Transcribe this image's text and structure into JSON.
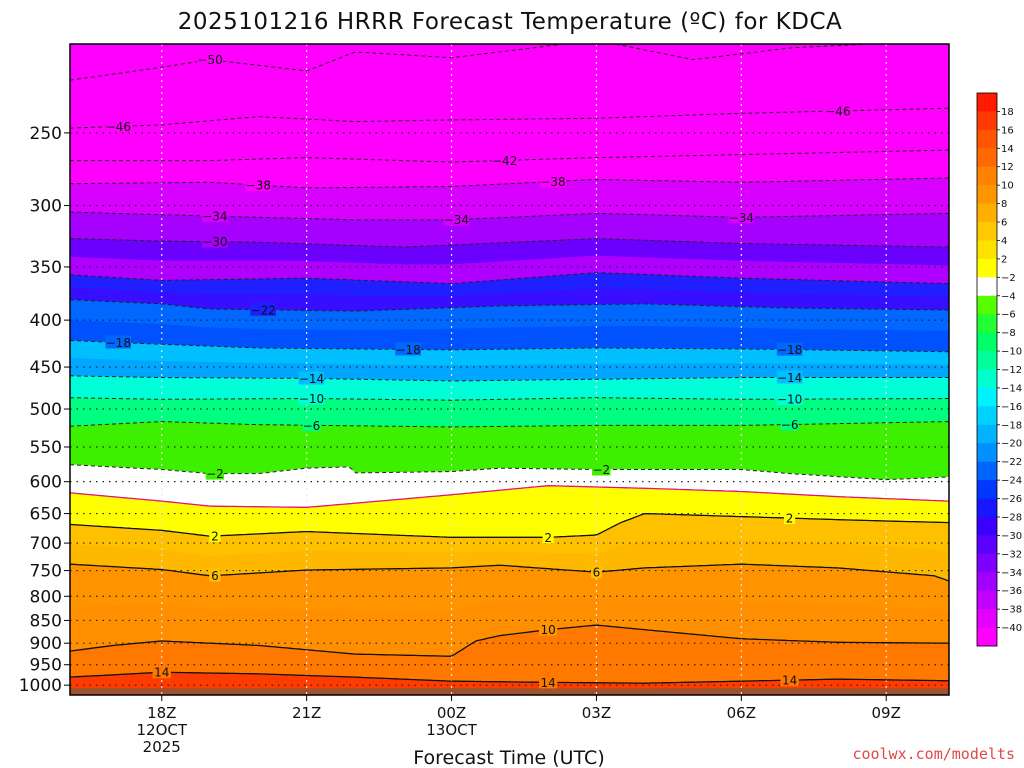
{
  "chart_data": {
    "type": "heatmap",
    "title": "2025101216 HRRR Forecast Temperature (ºC) for KDCA",
    "xlabel": "Forecast Time (UTC)",
    "ylabel": "",
    "credit": "coolwx.com/modelts",
    "x_range_hours": [
      16.1,
      34.3
    ],
    "y_range_hPa": [
      200,
      1025
    ],
    "x_ticks": [
      {
        "hour": 18,
        "lines": [
          "18Z",
          "12OCT",
          "2025"
        ]
      },
      {
        "hour": 21,
        "lines": [
          "21Z"
        ]
      },
      {
        "hour": 24,
        "lines": [
          "00Z",
          "13OCT"
        ]
      },
      {
        "hour": 27,
        "lines": [
          "03Z"
        ]
      },
      {
        "hour": 30,
        "lines": [
          "06Z"
        ]
      },
      {
        "hour": 33,
        "lines": [
          "09Z"
        ]
      }
    ],
    "y_ticks": [
      250,
      300,
      350,
      400,
      450,
      500,
      550,
      600,
      650,
      700,
      750,
      800,
      850,
      900,
      950,
      1000
    ],
    "colorbar_labels": [
      "18",
      "16",
      "14",
      "12",
      "10",
      "8",
      "6",
      "4",
      "2",
      "-2",
      "-4",
      "-6",
      "-8",
      "-10",
      "-12",
      "-14",
      "-16",
      "-18",
      "-20",
      "-22",
      "-24",
      "-26",
      "-28",
      "-30",
      "-32",
      "-34",
      "-36",
      "-38",
      "-40"
    ],
    "colorbar_colors": [
      "#ff1a00",
      "#ff3a00",
      "#ff5500",
      "#ff6a00",
      "#ff8200",
      "#ff9600",
      "#ffaf00",
      "#ffc800",
      "#ffe100",
      "#ffff00",
      "#ffffff",
      "#55ff00",
      "#22ff33",
      "#00ff66",
      "#00ff99",
      "#00ffcc",
      "#00f2ff",
      "#00d2ff",
      "#00b2ff",
      "#0090ff",
      "#0064ff",
      "#0038ff",
      "#1818ff",
      "#3a00ff",
      "#5c00ff",
      "#7e00ff",
      "#a000ff",
      "#c200ff",
      "#e400ff",
      "#ff00ff"
    ],
    "contours": [
      {
        "value": -50,
        "label": "−50",
        "style": "dashed",
        "hours": [
          16.1,
          18,
          19,
          21,
          22,
          24,
          27,
          29,
          31,
          34.3
        ],
        "pressures": [
          219,
          212,
          208,
          214,
          204,
          207,
          198,
          208,
          202,
          198
        ],
        "labels_at": [
          19.0
        ]
      },
      {
        "value": -46,
        "label": "−46",
        "style": "dashed",
        "hours": [
          16.1,
          18,
          20,
          22,
          24,
          27,
          30,
          34.3
        ],
        "pressures": [
          247,
          245,
          240,
          243,
          242,
          241,
          238,
          235
        ],
        "labels_at": [
          17.1,
          32.0
        ]
      },
      {
        "value": -42,
        "label": "−42",
        "style": "dashed",
        "hours": [
          16.1,
          19,
          21,
          24,
          27,
          30,
          34.3
        ],
        "pressures": [
          268,
          268,
          266,
          269,
          266,
          264,
          261
        ],
        "labels_at": [
          25.1
        ]
      },
      {
        "value": -38,
        "label": "−38",
        "style": "dashed",
        "hours": [
          16.1,
          19,
          21,
          24,
          27,
          30,
          34.3
        ],
        "pressures": [
          284,
          283,
          287,
          286,
          281,
          283,
          280
        ],
        "labels_at": [
          20.0,
          26.1
        ]
      },
      {
        "value": -34,
        "label": "−34",
        "style": "dashed",
        "hours": [
          16.1,
          18,
          20,
          22,
          24,
          27,
          30,
          34.3
        ],
        "pressures": [
          305,
          307,
          309,
          311,
          311,
          306,
          309,
          306
        ],
        "labels_at": [
          19.1,
          24.1,
          30.0
        ]
      },
      {
        "value": -30,
        "label": "−30",
        "style": "dashed",
        "hours": [
          16.1,
          18,
          20,
          23,
          27,
          30,
          34.3
        ],
        "pressures": [
          326,
          328,
          329,
          333,
          326,
          330,
          333
        ],
        "labels_at": [
          19.1
        ]
      },
      {
        "value": -26,
        "label": "",
        "style": "dashed",
        "hours": [
          16.1,
          18,
          21,
          24,
          27,
          30,
          34.3
        ],
        "pressures": [
          357,
          362,
          360,
          365,
          355,
          360,
          365
        ],
        "labels_at": []
      },
      {
        "value": -22,
        "label": "−22",
        "style": "dashed",
        "hours": [
          16.1,
          18,
          19,
          22,
          25,
          28,
          31,
          34.3
        ],
        "pressures": [
          380,
          384,
          389,
          391,
          386,
          384,
          388,
          390
        ],
        "labels_at": [
          20.1
        ]
      },
      {
        "value": -18,
        "label": "−18",
        "style": "dashed",
        "hours": [
          16.1,
          18,
          20,
          24,
          27,
          30,
          34.3
        ],
        "pressures": [
          421,
          425,
          429,
          431,
          429,
          430,
          433
        ],
        "labels_at": [
          17.1,
          23.1,
          31.0
        ]
      },
      {
        "value": -14,
        "label": "−14",
        "style": "dashed",
        "hours": [
          16.1,
          18,
          21,
          24,
          27,
          30,
          34.3
        ],
        "pressures": [
          460,
          462,
          463,
          466,
          464,
          462,
          462
        ],
        "labels_at": [
          21.1,
          31.0
        ]
      },
      {
        "value": -10,
        "label": "−10",
        "style": "dashed",
        "hours": [
          16.1,
          18,
          21,
          24,
          27,
          30,
          34.3
        ],
        "pressures": [
          486,
          488,
          487,
          489,
          486,
          488,
          487
        ],
        "labels_at": [
          21.1,
          31.0
        ]
      },
      {
        "value": -6,
        "label": "−6",
        "style": "dashed",
        "hours": [
          16.1,
          18,
          20,
          24,
          27,
          30,
          34.3
        ],
        "pressures": [
          522,
          516,
          520,
          523,
          521,
          521,
          516
        ],
        "labels_at": [
          21.1,
          31.0
        ]
      },
      {
        "value": -2,
        "label": "−2",
        "style": "dashed",
        "hours": [
          16.1,
          18,
          19,
          20,
          21,
          21.9,
          22,
          24,
          25,
          27,
          30,
          31,
          33,
          34.3
        ],
        "pressures": [
          575,
          582,
          588,
          588,
          580,
          578,
          587,
          585,
          580,
          582,
          582,
          588,
          597,
          593
        ],
        "labels_at": [
          19.1,
          27.1
        ]
      },
      {
        "value": 0,
        "label": "",
        "style": "freezing",
        "hours": [
          16.1,
          18,
          19,
          21,
          24,
          26,
          28,
          30,
          32,
          34.3
        ],
        "pressures": [
          617,
          630,
          638,
          640,
          620,
          606,
          610,
          615,
          623,
          630
        ],
        "labels_at": []
      },
      {
        "value": 2,
        "label": "2",
        "style": "solid",
        "hours": [
          16.1,
          18,
          19,
          21,
          24,
          26,
          27,
          27.5,
          28,
          30,
          32,
          34.3
        ],
        "pressures": [
          668,
          678,
          688,
          680,
          690,
          690,
          686,
          665,
          650,
          655,
          660,
          665
        ],
        "labels_at": [
          19.1,
          26.0,
          31.0
        ]
      },
      {
        "value": 6,
        "label": "6",
        "style": "solid",
        "hours": [
          16.1,
          18,
          19,
          21,
          24,
          25,
          27,
          28,
          30,
          32,
          34,
          34.3
        ],
        "pressures": [
          738,
          748,
          760,
          749,
          745,
          740,
          753,
          745,
          738,
          745,
          760,
          770
        ],
        "labels_at": [
          19.1,
          27.0
        ]
      },
      {
        "value": 10,
        "label": "10",
        "style": "solid",
        "hours": [
          16.1,
          17,
          18,
          20,
          22,
          24,
          24.5,
          25,
          26,
          27,
          28,
          30,
          32,
          34.3
        ],
        "pressures": [
          918,
          905,
          895,
          905,
          925,
          930,
          895,
          883,
          870,
          860,
          870,
          890,
          898,
          900
        ],
        "labels_at": [
          26.0
        ]
      },
      {
        "value": 14,
        "label": "14",
        "style": "solid",
        "hours": [
          16.1,
          18,
          20,
          22,
          24,
          26,
          28,
          30,
          32,
          34.3
        ],
        "pressures": [
          980,
          968,
          972,
          980,
          990,
          993,
          995,
          990,
          985,
          989
        ],
        "labels_at": [
          18.0,
          26.0,
          31.0
        ]
      }
    ],
    "surface_pressures": {
      "hours": [
        16.1,
        20,
        24,
        27,
        30,
        34.3
      ],
      "pressures": [
        1007,
        1008,
        1007,
        1008,
        1007,
        1008
      ]
    }
  }
}
